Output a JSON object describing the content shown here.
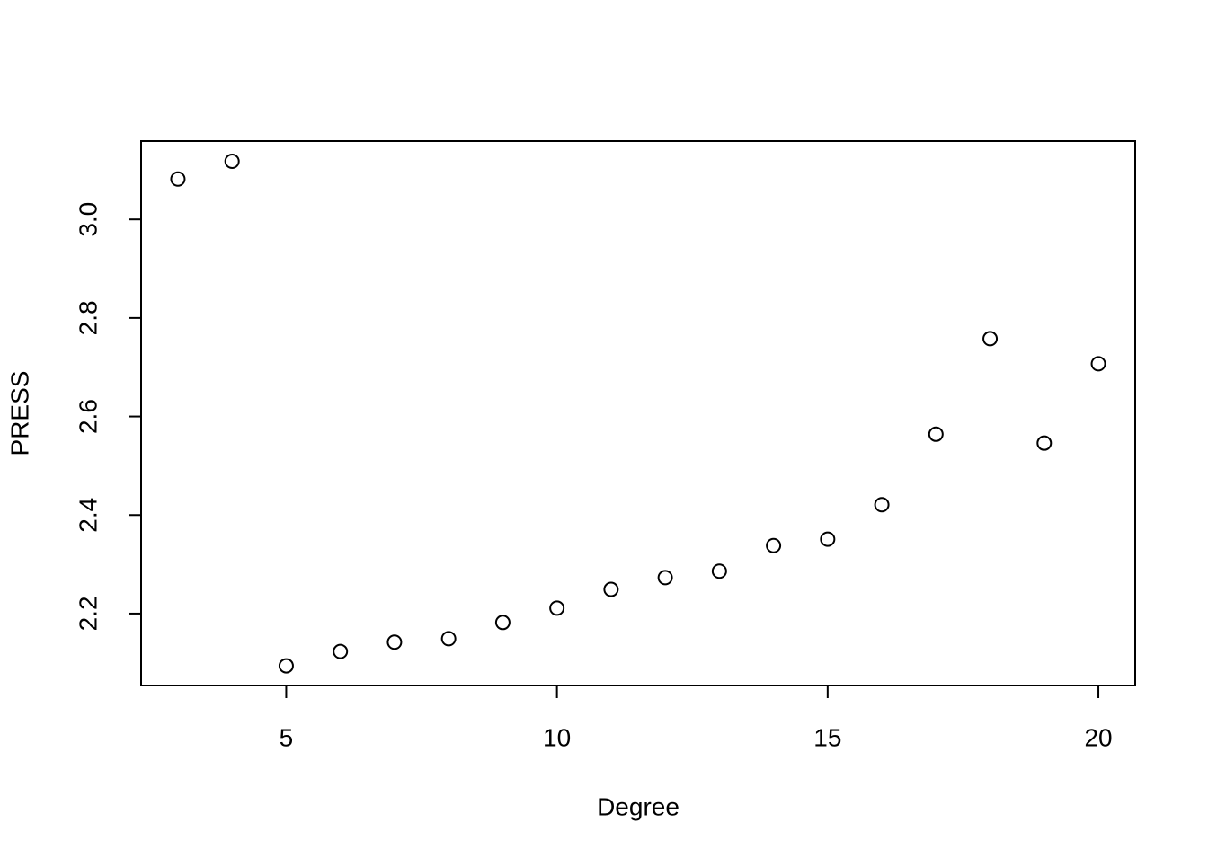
{
  "chart_data": {
    "type": "scatter",
    "x_label": "Degree",
    "y_label": "PRESS",
    "x": [
      3,
      4,
      5,
      6,
      7,
      8,
      9,
      10,
      11,
      12,
      13,
      14,
      15,
      16,
      17,
      18,
      19,
      20
    ],
    "values": [
      3.082,
      3.118,
      2.094,
      2.123,
      2.142,
      2.149,
      2.182,
      2.211,
      2.249,
      2.273,
      2.286,
      2.338,
      2.351,
      2.421,
      2.564,
      2.758,
      2.546,
      2.707
    ],
    "color": "#000000",
    "xlim": [
      2.32,
      20.68
    ],
    "ylim": [
      2.054,
      3.159
    ],
    "xticks": [
      5,
      10,
      15,
      20
    ],
    "yticks": [
      2.2,
      2.4,
      2.6,
      2.8,
      {
        "value": 3,
        "label": "3.0"
      }
    ]
  }
}
